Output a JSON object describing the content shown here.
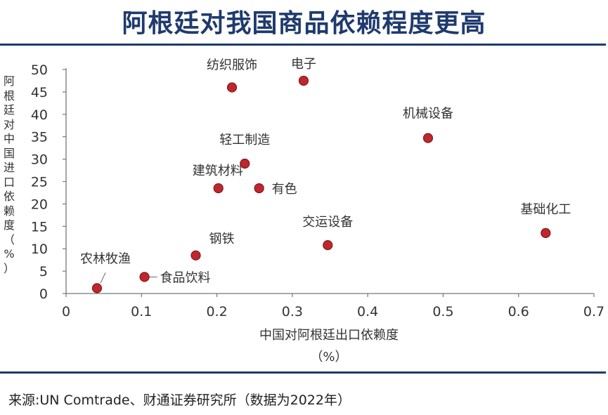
{
  "title": "阿根廷对我国商品依赖程度更高",
  "source": "来源:UN Comtrade、财通证券研究所（数据为2022年）",
  "colors": {
    "title": "#1f3a6e",
    "point": "#c0272d",
    "rule": "#1f3a6e"
  },
  "chart_data": {
    "type": "scatter",
    "title": "阿根廷对我国商品依赖程度更高",
    "xlabel": "中国对阿根廷出口依赖度",
    "xlabel_unit": "（%）",
    "ylabel": "阿根廷对中国进口依赖度（%）",
    "xlim": [
      0,
      0.7
    ],
    "ylim": [
      0,
      50
    ],
    "xticks": [
      "0",
      "0.1",
      "0.2",
      "0.3",
      "0.4",
      "0.5",
      "0.6",
      "0.7"
    ],
    "yticks": [
      "0",
      "5",
      "10",
      "15",
      "20",
      "25",
      "30",
      "35",
      "40",
      "45",
      "50"
    ],
    "grid": false,
    "points": [
      {
        "label": "纺织服饰",
        "x": 0.22,
        "y": 46
      },
      {
        "label": "电子",
        "x": 0.315,
        "y": 47.5
      },
      {
        "label": "机械设备",
        "x": 0.48,
        "y": 34.7
      },
      {
        "label": "轻工制造",
        "x": 0.237,
        "y": 29
      },
      {
        "label": "建筑材料",
        "x": 0.202,
        "y": 23.5
      },
      {
        "label": "有色",
        "x": 0.256,
        "y": 23.5
      },
      {
        "label": "交运设备",
        "x": 0.347,
        "y": 10.8
      },
      {
        "label": "基础化工",
        "x": 0.636,
        "y": 13.5
      },
      {
        "label": "钢铁",
        "x": 0.172,
        "y": 8.5
      },
      {
        "label": "农林牧渔",
        "x": 0.041,
        "y": 1.2
      },
      {
        "label": "食品饮料",
        "x": 0.104,
        "y": 3.7
      }
    ]
  }
}
